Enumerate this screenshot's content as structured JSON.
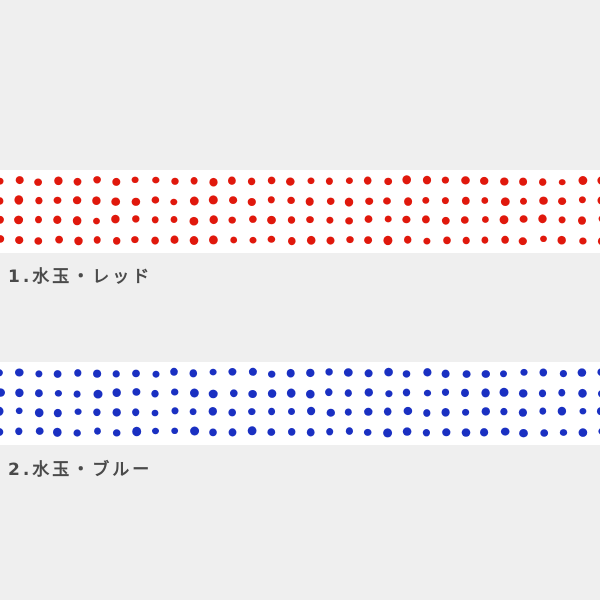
{
  "products": [
    {
      "label": "1.水玉・レッド",
      "dot_color": "#e0180c",
      "pattern": "polka-dot"
    },
    {
      "label": "2.水玉・ブルー",
      "dot_color": "#1a30c2",
      "pattern": "polka-dot"
    }
  ]
}
